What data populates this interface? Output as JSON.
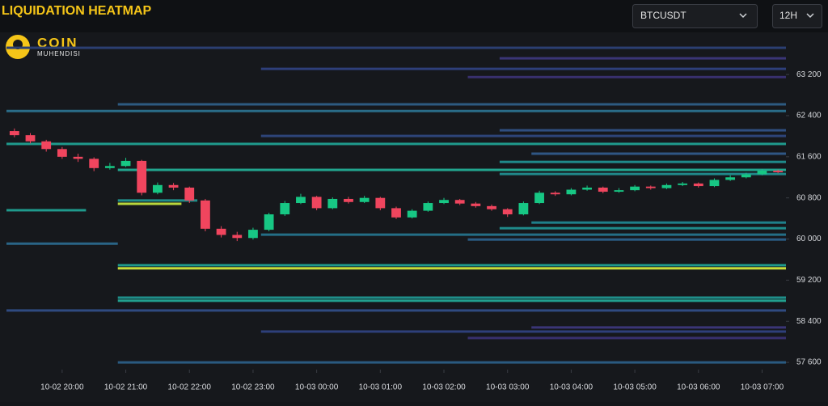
{
  "controls": {
    "symbol": "BTCUSDT",
    "interval": "12H"
  },
  "logo": {
    "brand": "COIN",
    "sub": "MUHENDISI"
  },
  "chart_data": {
    "type": "candlestick",
    "title": "LIQUIDATION HEATMAP",
    "x": [
      "10-02 19:15",
      "10-02 19:30",
      "10-02 19:45",
      "10-02 20:00",
      "10-02 20:15",
      "10-02 20:30",
      "10-02 20:45",
      "10-02 21:00",
      "10-02 21:15",
      "10-02 21:30",
      "10-02 21:45",
      "10-02 22:00",
      "10-02 22:15",
      "10-02 22:30",
      "10-02 22:45",
      "10-02 23:00",
      "10-02 23:15",
      "10-02 23:30",
      "10-02 23:45",
      "10-03 00:00",
      "10-03 00:15",
      "10-03 00:30",
      "10-03 00:45",
      "10-03 01:00",
      "10-03 01:15",
      "10-03 01:30",
      "10-03 01:45",
      "10-03 02:00",
      "10-03 02:15",
      "10-03 02:30",
      "10-03 02:45",
      "10-03 03:00",
      "10-03 03:15",
      "10-03 03:30",
      "10-03 03:45",
      "10-03 04:00",
      "10-03 04:15",
      "10-03 04:30",
      "10-03 04:45",
      "10-03 05:00",
      "10-03 05:15",
      "10-03 05:30",
      "10-03 05:45",
      "10-03 06:00",
      "10-03 06:15",
      "10-03 06:30",
      "10-03 06:45",
      "10-03 07:00",
      "10-03 07:15"
    ],
    "open": [
      62100,
      62020,
      61900,
      61750,
      61600,
      61560,
      61380,
      61420,
      61520,
      60900,
      61050,
      61000,
      60750,
      60200,
      60080,
      60020,
      60180,
      60480,
      60700,
      60820,
      60600,
      60780,
      60720,
      60800,
      60600,
      60420,
      60550,
      60700,
      60760,
      60690,
      60640,
      60580,
      60480,
      60700,
      60900,
      60870,
      60960,
      61000,
      60920,
      60950,
      61020,
      60990,
      61050,
      61080,
      61030,
      61150,
      61200,
      61260,
      61330
    ],
    "high": [
      62150,
      62060,
      61930,
      61790,
      61660,
      61590,
      61480,
      61580,
      61540,
      61100,
      61090,
      61020,
      60780,
      60250,
      60140,
      60220,
      60510,
      60740,
      60880,
      60840,
      60810,
      60820,
      60840,
      60820,
      60630,
      60580,
      60730,
      60800,
      60780,
      60720,
      60670,
      60600,
      60730,
      60940,
      60930,
      60990,
      61040,
      61020,
      60990,
      61050,
      61040,
      61080,
      61110,
      61100,
      61180,
      61240,
      61290,
      61360,
      61350
    ],
    "low": [
      61980,
      61860,
      61700,
      61560,
      61500,
      61320,
      61350,
      61400,
      60850,
      60870,
      60950,
      60700,
      60150,
      60030,
      59960,
      59990,
      60150,
      60450,
      60680,
      60560,
      60580,
      60690,
      60700,
      60560,
      60390,
      60400,
      60530,
      60680,
      60660,
      60610,
      60550,
      60430,
      60460,
      60680,
      60840,
      60850,
      60940,
      60890,
      60900,
      60930,
      60960,
      60970,
      61030,
      61000,
      61010,
      61130,
      61180,
      61240,
      61280
    ],
    "close": [
      62020,
      61900,
      61750,
      61600,
      61560,
      61380,
      61420,
      61520,
      60900,
      61050,
      61000,
      60750,
      60200,
      60080,
      60020,
      60180,
      60480,
      60700,
      60820,
      60600,
      60780,
      60720,
      60800,
      60600,
      60420,
      60550,
      60700,
      60760,
      60690,
      60640,
      60580,
      60480,
      60700,
      60900,
      60870,
      60960,
      61000,
      60920,
      60950,
      61020,
      60990,
      61050,
      61080,
      61030,
      61150,
      61200,
      61260,
      61330,
      61300
    ],
    "up_color": "#17c784",
    "down_color": "#f0455e",
    "levels": [
      {
        "price": 63720,
        "start": "10-02 19:15",
        "color": "#2b3f72"
      },
      {
        "price": 63515,
        "start": "10-03 03:00",
        "color": "#3a3576"
      },
      {
        "price": 63310,
        "start": "10-02 23:15",
        "color": "#2e3f7a"
      },
      {
        "price": 63150,
        "start": "10-03 02:30",
        "color": "#38306e"
      },
      {
        "price": 62620,
        "start": "10-02 21:00",
        "color": "#2d5a80"
      },
      {
        "price": 62490,
        "start": "10-02 19:15",
        "color": "#2a6c88"
      },
      {
        "price": 62115,
        "start": "10-03 03:00",
        "color": "#2f4e80"
      },
      {
        "price": 62005,
        "start": "10-02 23:15",
        "color": "#2d4478"
      },
      {
        "price": 61850,
        "start": "10-02 19:15",
        "color": "#1f9a8c"
      },
      {
        "price": 61660,
        "start": "10-03 03:30",
        "color": "#2f5684"
      },
      {
        "price": 61500,
        "start": "10-03 03:00",
        "color": "#1f8a8a"
      },
      {
        "price": 61345,
        "start": "10-02 21:00",
        "color": "#22a58e"
      },
      {
        "price": 61265,
        "start": "10-03 03:00",
        "color": "#20888a"
      },
      {
        "price": 60750,
        "start": "10-02 21:00",
        "end": "10-02 22:00",
        "color": "#1f8f8a"
      },
      {
        "price": 60685,
        "start": "10-02 21:00",
        "end": "10-02 21:45",
        "color": "#b9d63c"
      },
      {
        "price": 60560,
        "start": "10-02 19:15",
        "end": "10-02 20:15",
        "color": "#1f9a8c"
      },
      {
        "price": 60320,
        "start": "10-03 03:30",
        "color": "#1f7f8a"
      },
      {
        "price": 60210,
        "start": "10-03 03:00",
        "color": "#1f8a8a"
      },
      {
        "price": 60085,
        "start": "10-02 23:15",
        "color": "#246e86"
      },
      {
        "price": 59990,
        "start": "10-03 02:30",
        "color": "#2a5c84"
      },
      {
        "price": 59910,
        "start": "10-02 19:15",
        "end": "10-02 20:45",
        "color": "#2a6486"
      },
      {
        "price": 59490,
        "start": "10-02 21:00",
        "color": "#1f9a8c"
      },
      {
        "price": 59430,
        "start": "10-02 21:00",
        "color": "#c6dc3a"
      },
      {
        "price": 58860,
        "start": "10-02 21:00",
        "color": "#1f8f8a"
      },
      {
        "price": 58800,
        "start": "10-02 21:00",
        "color": "#22a08e"
      },
      {
        "price": 58610,
        "start": "10-02 19:15",
        "color": "#2f4a80"
      },
      {
        "price": 58280,
        "start": "10-03 03:30",
        "color": "#3a3576"
      },
      {
        "price": 58200,
        "start": "10-02 23:15",
        "color": "#2e3f7a"
      },
      {
        "price": 58075,
        "start": "10-03 02:30",
        "color": "#38306e"
      },
      {
        "price": 57600,
        "start": "10-02 21:00",
        "color": "#2a5a80"
      }
    ],
    "ylim": [
      57460,
      64020
    ],
    "yticks": [
      {
        "value": 57600,
        "label": "57 600"
      },
      {
        "value": 58400,
        "label": "58 400"
      },
      {
        "value": 59200,
        "label": "59 200"
      },
      {
        "value": 60000,
        "label": "60 000"
      },
      {
        "value": 60800,
        "label": "60 800"
      },
      {
        "value": 61600,
        "label": "61 600"
      },
      {
        "value": 62400,
        "label": "62 400"
      },
      {
        "value": 63200,
        "label": "63 200"
      }
    ],
    "xticks": [
      "10-02 20:00",
      "10-02 21:00",
      "10-02 22:00",
      "10-02 23:00",
      "10-03 00:00",
      "10-03 01:00",
      "10-03 02:00",
      "10-03 03:00",
      "10-03 04:00",
      "10-03 05:00",
      "10-03 06:00",
      "10-03 07:00"
    ]
  }
}
